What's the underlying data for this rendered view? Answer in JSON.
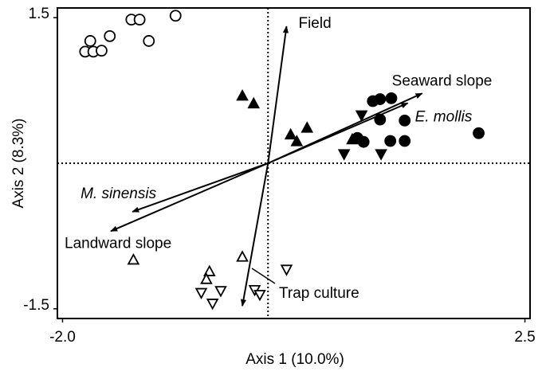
{
  "chart_data": {
    "type": "scatter",
    "xlabel": "Axis 1 (10.0%)",
    "ylabel": "Axis 2 (8.3%)",
    "xlim": [
      -2.05,
      2.55
    ],
    "ylim": [
      -1.6,
      1.6
    ],
    "xticks": [
      {
        "value": -2,
        "label": "-2.0"
      },
      2.5
    ],
    "yticks": [
      -1.5,
      1.5
    ],
    "series": [
      {
        "marker": "circle",
        "filled": false,
        "color": "#000000",
        "x": [
          -1.33,
          -1.25,
          -0.9,
          -1.54,
          -1.16,
          -1.73,
          -1.78,
          -1.7,
          -1.62
        ],
        "y": [
          1.48,
          1.48,
          1.52,
          1.31,
          1.26,
          1.26,
          1.15,
          1.15,
          1.16
        ]
      },
      {
        "marker": "circle",
        "filled": true,
        "color": "#000000",
        "x": [
          1.02,
          1.09,
          1.2,
          1.09,
          1.33,
          0.87,
          0.93,
          1.19,
          1.33,
          2.05
        ],
        "y": [
          0.64,
          0.66,
          0.67,
          0.45,
          0.44,
          0.26,
          0.22,
          0.23,
          0.23,
          0.31
        ]
      },
      {
        "marker": "triangle-up",
        "filled": true,
        "color": "#000000",
        "x": [
          -0.25,
          -0.14,
          0.22,
          0.38,
          0.28,
          0.82
        ],
        "y": [
          0.69,
          0.61,
          0.29,
          0.36,
          0.22,
          0.24
        ]
      },
      {
        "marker": "triangle-down",
        "filled": true,
        "color": "#000000",
        "x": [
          0.91,
          0.74,
          1.1
        ],
        "y": [
          0.5,
          0.1,
          0.1
        ]
      },
      {
        "marker": "triangle-up",
        "filled": false,
        "color": "#000000",
        "x": [
          -1.31,
          -0.57,
          -0.6,
          -0.25
        ],
        "y": [
          -1.0,
          -1.12,
          -1.2,
          -0.97
        ]
      },
      {
        "marker": "triangle-down",
        "filled": false,
        "color": "#000000",
        "x": [
          0.18,
          -0.65,
          -0.46,
          -0.54,
          -0.13,
          -0.08
        ],
        "y": [
          -1.09,
          -1.33,
          -1.31,
          -1.44,
          -1.3,
          -1.35
        ]
      }
    ],
    "vectors": [
      {
        "label": "Field",
        "italic": false,
        "x": 0.18,
        "y": 1.41
      },
      {
        "label": "Seaward slope",
        "italic": false,
        "x": 1.5,
        "y": 0.72
      },
      {
        "label": "E. mollis",
        "italic": true,
        "x": 1.36,
        "y": 0.62
      },
      {
        "label": "M. sinensis",
        "italic": true,
        "x": -1.32,
        "y": -0.5
      },
      {
        "label": "Landward slope",
        "italic": false,
        "x": -1.53,
        "y": -0.7
      },
      {
        "label": "Trap culture",
        "italic": false,
        "x": -0.25,
        "y": -1.47
      }
    ]
  }
}
